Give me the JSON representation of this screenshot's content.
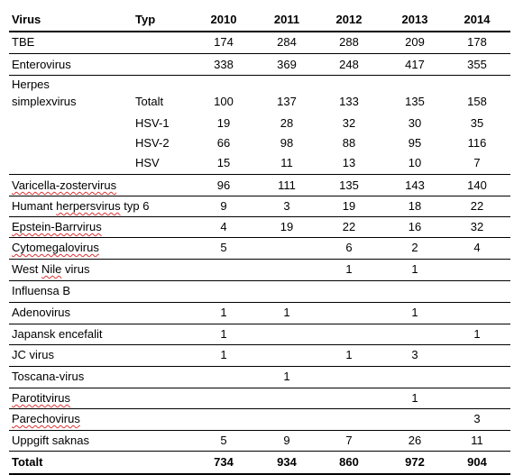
{
  "header": {
    "virus": "Virus",
    "typ": "Typ",
    "years": [
      "2010",
      "2011",
      "2012",
      "2013",
      "2014"
    ]
  },
  "rows": [
    {
      "virus": "TBE",
      "typ": "",
      "values": [
        "174",
        "284",
        "288",
        "209",
        "178"
      ]
    },
    {
      "virus": "Enterovirus",
      "typ": "",
      "values": [
        "338",
        "369",
        "248",
        "417",
        "355"
      ]
    },
    {
      "virus": "Herpes",
      "typ": "",
      "values": [
        "",
        "",
        "",
        "",
        ""
      ]
    },
    {
      "virus": "simplexvirus",
      "typ": "Totalt",
      "values": [
        "100",
        "137",
        "133",
        "135",
        "158"
      ]
    },
    {
      "virus": "",
      "typ": "HSV-1",
      "values": [
        "19",
        "28",
        "32",
        "30",
        "35"
      ]
    },
    {
      "virus": "",
      "typ": "HSV-2",
      "values": [
        "66",
        "98",
        "88",
        "95",
        "116"
      ]
    },
    {
      "virus": "",
      "typ": "HSV",
      "values": [
        "15",
        "11",
        "13",
        "10",
        "7"
      ]
    },
    {
      "virus": "Varicella-zostervirus",
      "typ": "",
      "values": [
        "96",
        "111",
        "135",
        "143",
        "140"
      ]
    },
    {
      "virus": "Humant herpersvirus typ 6",
      "typ": "",
      "values": [
        "9",
        "3",
        "19",
        "18",
        "22"
      ]
    },
    {
      "virus": "Epstein-Barrvirus",
      "typ": "",
      "values": [
        "4",
        "19",
        "22",
        "16",
        "32"
      ]
    },
    {
      "virus": "Cytomegalovirus",
      "typ": "",
      "values": [
        "5",
        "",
        "6",
        "2",
        "4"
      ]
    },
    {
      "virus": "West Nile virus",
      "typ": "",
      "values": [
        "",
        "",
        "1",
        "1",
        ""
      ]
    },
    {
      "virus": "Influensa B",
      "typ": "",
      "values": [
        "",
        "",
        "",
        "",
        ""
      ]
    },
    {
      "virus": "Adenovirus",
      "typ": "",
      "values": [
        "1",
        "1",
        "",
        "1",
        ""
      ]
    },
    {
      "virus": "Japansk encefalit",
      "typ": "",
      "values": [
        "1",
        "",
        "",
        "",
        "1"
      ]
    },
    {
      "virus": "JC virus",
      "typ": "",
      "values": [
        "1",
        "",
        "1",
        "3",
        ""
      ]
    },
    {
      "virus": "Toscana-virus",
      "typ": "",
      "values": [
        "",
        "1",
        "",
        "",
        ""
      ]
    },
    {
      "virus": "Parotitvirus",
      "typ": "",
      "values": [
        "",
        "",
        "",
        "1",
        ""
      ]
    },
    {
      "virus": "Parechovirus",
      "typ": "",
      "values": [
        "",
        "",
        "",
        "",
        "3"
      ]
    },
    {
      "virus": "Uppgift saknas",
      "typ": "",
      "values": [
        "5",
        "9",
        "7",
        "26",
        "11"
      ]
    }
  ],
  "total": {
    "virus": "Totalt",
    "typ": "",
    "values": [
      "734",
      "934",
      "860",
      "972",
      "904"
    ]
  }
}
